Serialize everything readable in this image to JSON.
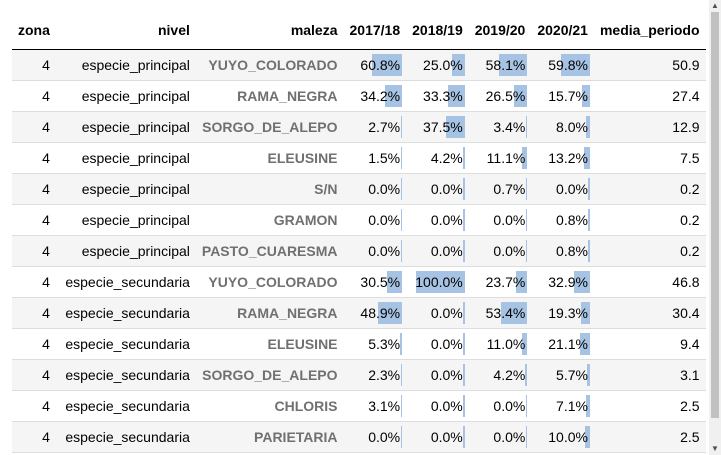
{
  "table": {
    "headers": [
      "zona",
      "nivel",
      "maleza",
      "2017/18",
      "2018/19",
      "2019/20",
      "2020/21",
      "media_periodo"
    ],
    "rows": [
      {
        "zona": "4",
        "nivel": "especie_principal",
        "maleza": "YUYO_COLORADO",
        "p": [
          "60.8%",
          "25.0%",
          "58.1%",
          "59.8%"
        ],
        "v": [
          0.608,
          0.25,
          0.581,
          0.598
        ],
        "media": "50.9"
      },
      {
        "zona": "4",
        "nivel": "especie_principal",
        "maleza": "RAMA_NEGRA",
        "p": [
          "34.2%",
          "33.3%",
          "26.5%",
          "15.7%"
        ],
        "v": [
          0.342,
          0.333,
          0.265,
          0.157
        ],
        "media": "27.4"
      },
      {
        "zona": "4",
        "nivel": "especie_principal",
        "maleza": "SORGO_DE_ALEPO",
        "p": [
          "2.7%",
          "37.5%",
          "3.4%",
          "8.0%"
        ],
        "v": [
          0.027,
          0.375,
          0.034,
          0.08
        ],
        "media": "12.9"
      },
      {
        "zona": "4",
        "nivel": "especie_principal",
        "maleza": "ELEUSINE",
        "p": [
          "1.5%",
          "4.2%",
          "11.1%",
          "13.2%"
        ],
        "v": [
          0.015,
          0.042,
          0.111,
          0.132
        ],
        "media": "7.5"
      },
      {
        "zona": "4",
        "nivel": "especie_principal",
        "maleza": "S/N",
        "p": [
          "0.0%",
          "0.0%",
          "0.7%",
          "0.0%"
        ],
        "v": [
          0.0,
          0.0,
          0.007,
          0.0
        ],
        "media": "0.2"
      },
      {
        "zona": "4",
        "nivel": "especie_principal",
        "maleza": "GRAMON",
        "p": [
          "0.0%",
          "0.0%",
          "0.0%",
          "0.8%"
        ],
        "v": [
          0.0,
          0.0,
          0.0,
          0.008
        ],
        "media": "0.2"
      },
      {
        "zona": "4",
        "nivel": "especie_principal",
        "maleza": "PASTO_CUARESMA",
        "p": [
          "0.0%",
          "0.0%",
          "0.0%",
          "0.8%"
        ],
        "v": [
          0.0,
          0.0,
          0.0,
          0.008
        ],
        "media": "0.2"
      },
      {
        "zona": "4",
        "nivel": "especie_secundaria",
        "maleza": "YUYO_COLORADO",
        "p": [
          "30.5%",
          "100.0%",
          "23.7%",
          "32.9%"
        ],
        "v": [
          0.305,
          1.0,
          0.237,
          0.329
        ],
        "media": "46.8"
      },
      {
        "zona": "4",
        "nivel": "especie_secundaria",
        "maleza": "RAMA_NEGRA",
        "p": [
          "48.9%",
          "0.0%",
          "53.4%",
          "19.3%"
        ],
        "v": [
          0.489,
          0.0,
          0.534,
          0.193
        ],
        "media": "30.4"
      },
      {
        "zona": "4",
        "nivel": "especie_secundaria",
        "maleza": "ELEUSINE",
        "p": [
          "5.3%",
          "0.0%",
          "11.0%",
          "21.1%"
        ],
        "v": [
          0.053,
          0.0,
          0.11,
          0.211
        ],
        "media": "9.4"
      },
      {
        "zona": "4",
        "nivel": "especie_secundaria",
        "maleza": "SORGO_DE_ALEPO",
        "p": [
          "2.3%",
          "0.0%",
          "4.2%",
          "5.7%"
        ],
        "v": [
          0.023,
          0.0,
          0.042,
          0.057
        ],
        "media": "3.1"
      },
      {
        "zona": "4",
        "nivel": "especie_secundaria",
        "maleza": "CHLORIS",
        "p": [
          "3.1%",
          "0.0%",
          "0.0%",
          "7.1%"
        ],
        "v": [
          0.031,
          0.0,
          0.0,
          0.071
        ],
        "media": "2.5"
      },
      {
        "zona": "4",
        "nivel": "especie_secundaria",
        "maleza": "PARIETARIA",
        "p": [
          "0.0%",
          "0.0%",
          "0.0%",
          "10.0%"
        ],
        "v": [
          0.0,
          0.0,
          0.0,
          0.1
        ],
        "media": "2.5"
      }
    ]
  },
  "colors": {
    "bar": "#a6c3e3",
    "maleza_text": "#707070",
    "stripe": "#f5f5f5"
  },
  "scrollbar": {
    "up_icon": "arrow-up-icon",
    "down_icon": "arrow-down-icon"
  }
}
